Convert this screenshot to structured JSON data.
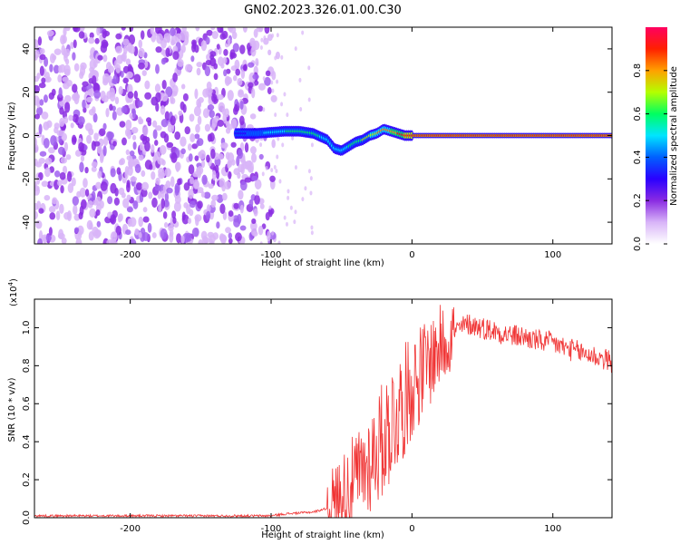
{
  "title": "GN02.2023.326.01.00.C30",
  "colors": {
    "snr_line": "#f03434",
    "colormap": [
      "#ffffff",
      "#d8b4f8",
      "#8a2be2",
      "#2a00ff",
      "#0060ff",
      "#00e5ff",
      "#00ff60",
      "#b4ff00",
      "#ffa000",
      "#ff2000",
      "#ff0060"
    ]
  },
  "chart_data": [
    {
      "type": "heatmap",
      "xlabel": "Height of straight line (km)",
      "ylabel": "Frequency (Hz)",
      "xlim": [
        -268,
        142
      ],
      "ylim": [
        -50,
        50
      ],
      "x_ticks": [
        -200,
        -100,
        0,
        100
      ],
      "y_ticks": [
        -40,
        -20,
        0,
        20,
        40
      ],
      "x_tick_labels": [
        "-200",
        "-100",
        "0",
        "100"
      ],
      "y_tick_labels": [
        "-40",
        "-20",
        "0",
        "20",
        "40"
      ],
      "colorbar": {
        "label": "Normalized spectral amplitude",
        "range": [
          0,
          1
        ],
        "ticks": [
          0.0,
          0.2,
          0.4,
          0.6,
          0.8
        ],
        "tick_labels": [
          "0.0",
          "0.2",
          "0.4",
          "0.6",
          "0.8"
        ]
      },
      "noise_region_x": [
        -268,
        -110
      ],
      "ridge": {
        "x": [
          -125,
          -110,
          -100,
          -90,
          -80,
          -70,
          -60,
          -55,
          -50,
          -45,
          -40,
          -35,
          -30,
          -25,
          -20,
          -15,
          -10,
          -5,
          0,
          50,
          100,
          142
        ],
        "freq": [
          1,
          1,
          1.5,
          2,
          2,
          1,
          -2,
          -6,
          -7,
          -5,
          -3,
          -2,
          0,
          1,
          3,
          2,
          1,
          0,
          0,
          0,
          0,
          0
        ],
        "amplitude": [
          0.3,
          0.4,
          0.5,
          0.55,
          0.6,
          0.6,
          0.5,
          0.45,
          0.5,
          0.55,
          0.6,
          0.65,
          0.7,
          0.75,
          0.75,
          0.8,
          0.85,
          0.9,
          0.95,
          0.9,
          0.9,
          0.9
        ]
      }
    },
    {
      "type": "line",
      "xlabel": "Height of straight line (km)",
      "ylabel": "SNR (10 * v/v)",
      "y_scale_label": "(x10",
      "y_scale_exponent": "4",
      "y_scale_suffix": ")",
      "xlim": [
        -268,
        142
      ],
      "ylim": [
        0,
        1.15
      ],
      "x_ticks": [
        -200,
        -100,
        0,
        100
      ],
      "y_ticks": [
        0.0,
        0.2,
        0.4,
        0.6,
        0.8,
        1.0
      ],
      "x_tick_labels": [
        "-200",
        "-100",
        "0",
        "100"
      ],
      "y_tick_labels": [
        "0.0",
        "0.2",
        "0.4",
        "0.6",
        "0.8",
        "1.0"
      ],
      "series": [
        {
          "x": [
            -268,
            -250,
            -200,
            -150,
            -110,
            -100,
            -90,
            -80,
            -70,
            -60,
            -55,
            -50,
            -45,
            -40,
            -35,
            -30,
            -25,
            -20,
            -15,
            -10,
            -5,
            0,
            10,
            20,
            30,
            40,
            50,
            60,
            70,
            80,
            90,
            100,
            110,
            120,
            130,
            142
          ],
          "y": [
            0.01,
            0.01,
            0.01,
            0.01,
            0.01,
            0.01,
            0.02,
            0.025,
            0.03,
            0.05,
            0.08,
            0.12,
            0.16,
            0.2,
            0.24,
            0.3,
            0.36,
            0.42,
            0.5,
            0.56,
            0.62,
            0.7,
            0.8,
            0.9,
            0.98,
            1.02,
            1.0,
            0.98,
            0.96,
            0.95,
            0.93,
            0.92,
            0.89,
            0.87,
            0.85,
            0.82
          ]
        }
      ]
    }
  ]
}
